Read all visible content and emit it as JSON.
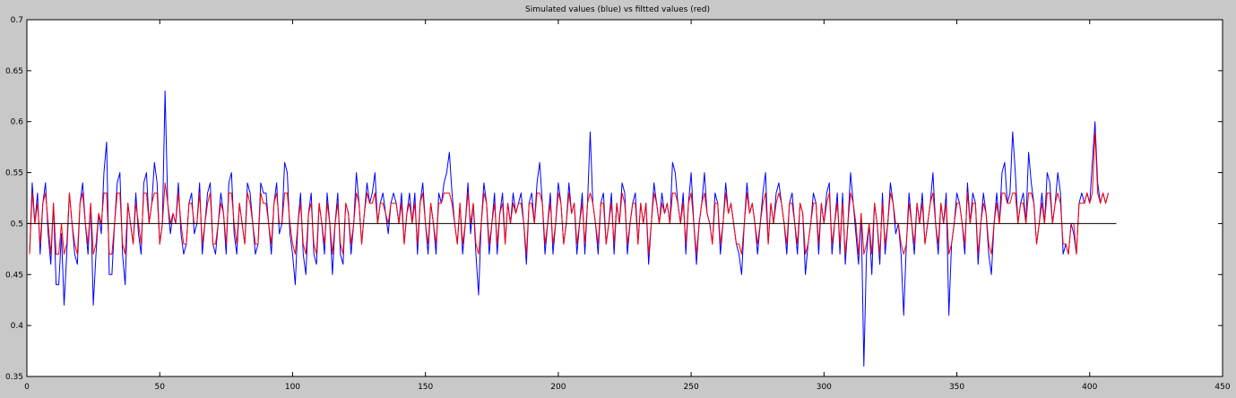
{
  "chart_data": {
    "type": "line",
    "title": "Simulated values (blue) vs filtted values (red)",
    "xlabel": "",
    "ylabel": "",
    "xlim": [
      0,
      450
    ],
    "ylim": [
      0.35,
      0.7
    ],
    "xticks": [
      0,
      50,
      100,
      150,
      200,
      250,
      300,
      350,
      400,
      450
    ],
    "yticks": [
      0.35,
      0.4,
      0.45,
      0.5,
      0.55,
      0.6,
      0.65,
      0.7
    ],
    "xtick_labels": [
      "0",
      "50",
      "100",
      "150",
      "200",
      "250",
      "300",
      "350",
      "400",
      "450"
    ],
    "ytick_labels": [
      "0.35",
      "0.4",
      "0.45",
      "0.5",
      "0.55",
      "0.6",
      "0.65",
      "0.7"
    ],
    "grid": false,
    "legend": "none",
    "reference_line": {
      "y": 0.5,
      "x": [
        0,
        410
      ],
      "color": "#000000"
    },
    "colors": {
      "blue": "#0000ff",
      "red": "#ff0000",
      "background": "#c8c8c8",
      "axes": "#ffffff"
    },
    "series": [
      {
        "color": "#0000ff",
        "x_start": 1,
        "values": [
          0.47,
          0.54,
          0.5,
          0.53,
          0.47,
          0.52,
          0.54,
          0.49,
          0.46,
          0.52,
          0.44,
          0.44,
          0.49,
          0.42,
          0.47,
          0.53,
          0.5,
          0.47,
          0.46,
          0.52,
          0.54,
          0.5,
          0.47,
          0.52,
          0.42,
          0.47,
          0.51,
          0.49,
          0.55,
          0.58,
          0.45,
          0.45,
          0.5,
          0.54,
          0.55,
          0.47,
          0.44,
          0.52,
          0.5,
          0.48,
          0.53,
          0.49,
          0.47,
          0.54,
          0.55,
          0.5,
          0.52,
          0.56,
          0.54,
          0.48,
          0.5,
          0.63,
          0.52,
          0.49,
          0.51,
          0.5,
          0.54,
          0.49,
          0.47,
          0.48,
          0.52,
          0.53,
          0.49,
          0.5,
          0.54,
          0.47,
          0.5,
          0.53,
          0.54,
          0.48,
          0.47,
          0.5,
          0.53,
          0.51,
          0.47,
          0.54,
          0.55,
          0.49,
          0.47,
          0.52,
          0.5,
          0.48,
          0.54,
          0.53,
          0.5,
          0.47,
          0.48,
          0.54,
          0.53,
          0.53,
          0.5,
          0.47,
          0.52,
          0.54,
          0.49,
          0.5,
          0.56,
          0.55,
          0.49,
          0.47,
          0.44,
          0.5,
          0.53,
          0.47,
          0.45,
          0.51,
          0.53,
          0.47,
          0.46,
          0.52,
          0.5,
          0.47,
          0.53,
          0.5,
          0.45,
          0.5,
          0.53,
          0.47,
          0.46,
          0.52,
          0.51,
          0.47,
          0.5,
          0.55,
          0.52,
          0.48,
          0.51,
          0.54,
          0.52,
          0.53,
          0.55,
          0.5,
          0.52,
          0.53,
          0.51,
          0.49,
          0.52,
          0.53,
          0.52,
          0.5,
          0.53,
          0.48,
          0.51,
          0.53,
          0.5,
          0.53,
          0.47,
          0.52,
          0.54,
          0.5,
          0.47,
          0.52,
          0.5,
          0.47,
          0.53,
          0.52,
          0.54,
          0.55,
          0.57,
          0.53,
          0.5,
          0.48,
          0.52,
          0.47,
          0.5,
          0.54,
          0.49,
          0.52,
          0.47,
          0.43,
          0.5,
          0.54,
          0.52,
          0.47,
          0.5,
          0.53,
          0.47,
          0.51,
          0.53,
          0.48,
          0.52,
          0.5,
          0.53,
          0.51,
          0.52,
          0.53,
          0.5,
          0.46,
          0.52,
          0.53,
          0.5,
          0.54,
          0.56,
          0.52,
          0.47,
          0.5,
          0.53,
          0.47,
          0.5,
          0.54,
          0.52,
          0.48,
          0.5,
          0.54,
          0.51,
          0.52,
          0.47,
          0.5,
          0.53,
          0.47,
          0.52,
          0.59,
          0.52,
          0.5,
          0.47,
          0.52,
          0.53,
          0.48,
          0.5,
          0.53,
          0.47,
          0.52,
          0.5,
          0.54,
          0.53,
          0.47,
          0.5,
          0.52,
          0.53,
          0.48,
          0.52,
          0.5,
          0.52,
          0.46,
          0.5,
          0.54,
          0.52,
          0.5,
          0.53,
          0.51,
          0.52,
          0.5,
          0.56,
          0.55,
          0.52,
          0.5,
          0.53,
          0.47,
          0.52,
          0.55,
          0.5,
          0.46,
          0.5,
          0.52,
          0.55,
          0.51,
          0.5,
          0.48,
          0.53,
          0.52,
          0.47,
          0.5,
          0.54,
          0.51,
          0.52,
          0.5,
          0.48,
          0.47,
          0.45,
          0.5,
          0.54,
          0.51,
          0.52,
          0.5,
          0.47,
          0.5,
          0.53,
          0.55,
          0.48,
          0.52,
          0.5,
          0.53,
          0.54,
          0.52,
          0.5,
          0.47,
          0.52,
          0.53,
          0.5,
          0.47,
          0.52,
          0.51,
          0.45,
          0.48,
          0.5,
          0.53,
          0.52,
          0.47,
          0.52,
          0.5,
          0.53,
          0.54,
          0.47,
          0.5,
          0.53,
          0.47,
          0.53,
          0.46,
          0.5,
          0.55,
          0.52,
          0.49,
          0.46,
          0.51,
          0.36,
          0.47,
          0.5,
          0.45,
          0.52,
          0.5,
          0.46,
          0.53,
          0.47,
          0.5,
          0.54,
          0.52,
          0.49,
          0.5,
          0.47,
          0.41,
          0.48,
          0.53,
          0.5,
          0.47,
          0.52,
          0.5,
          0.53,
          0.48,
          0.5,
          0.52,
          0.55,
          0.5,
          0.47,
          0.52,
          0.5,
          0.53,
          0.41,
          0.48,
          0.5,
          0.53,
          0.52,
          0.5,
          0.47,
          0.54,
          0.5,
          0.53,
          0.52,
          0.46,
          0.5,
          0.53,
          0.51,
          0.47,
          0.45,
          0.5,
          0.53,
          0.5,
          0.55,
          0.56,
          0.52,
          0.53,
          0.59,
          0.55,
          0.5,
          0.52,
          0.53,
          0.5,
          0.57,
          0.54,
          0.52,
          0.48,
          0.5,
          0.53,
          0.5,
          0.55,
          0.54,
          0.5,
          0.52,
          0.55,
          0.53,
          0.47,
          0.48,
          0.47,
          0.5,
          0.49,
          0.47,
          0.52,
          0.53,
          0.52,
          0.53,
          0.52,
          0.56,
          0.6,
          0.54,
          0.52,
          0.53,
          0.52,
          0.53
        ]
      },
      {
        "color": "#ff0000",
        "x_start": 1,
        "values": [
          0.47,
          0.53,
          0.5,
          0.52,
          0.48,
          0.52,
          0.53,
          0.5,
          0.47,
          0.52,
          0.47,
          0.47,
          0.5,
          0.47,
          0.48,
          0.53,
          0.5,
          0.48,
          0.47,
          0.52,
          0.53,
          0.5,
          0.48,
          0.52,
          0.47,
          0.48,
          0.51,
          0.5,
          0.53,
          0.53,
          0.47,
          0.47,
          0.5,
          0.53,
          0.53,
          0.48,
          0.47,
          0.52,
          0.5,
          0.48,
          0.52,
          0.5,
          0.48,
          0.53,
          0.53,
          0.5,
          0.52,
          0.53,
          0.53,
          0.48,
          0.5,
          0.54,
          0.52,
          0.5,
          0.51,
          0.5,
          0.53,
          0.5,
          0.48,
          0.48,
          0.52,
          0.52,
          0.5,
          0.5,
          0.53,
          0.48,
          0.5,
          0.52,
          0.53,
          0.48,
          0.48,
          0.5,
          0.52,
          0.51,
          0.48,
          0.53,
          0.53,
          0.5,
          0.48,
          0.52,
          0.5,
          0.48,
          0.53,
          0.52,
          0.5,
          0.48,
          0.48,
          0.53,
          0.52,
          0.52,
          0.5,
          0.48,
          0.52,
          0.53,
          0.5,
          0.5,
          0.53,
          0.53,
          0.5,
          0.48,
          0.47,
          0.5,
          0.52,
          0.48,
          0.47,
          0.51,
          0.52,
          0.48,
          0.47,
          0.52,
          0.5,
          0.48,
          0.52,
          0.5,
          0.47,
          0.5,
          0.52,
          0.48,
          0.47,
          0.52,
          0.51,
          0.48,
          0.5,
          0.53,
          0.52,
          0.48,
          0.51,
          0.53,
          0.52,
          0.52,
          0.53,
          0.5,
          0.52,
          0.52,
          0.51,
          0.5,
          0.52,
          0.52,
          0.52,
          0.5,
          0.52,
          0.48,
          0.51,
          0.52,
          0.5,
          0.52,
          0.48,
          0.52,
          0.53,
          0.5,
          0.48,
          0.52,
          0.5,
          0.48,
          0.52,
          0.52,
          0.53,
          0.53,
          0.53,
          0.52,
          0.5,
          0.48,
          0.52,
          0.48,
          0.5,
          0.53,
          0.5,
          0.52,
          0.48,
          0.47,
          0.5,
          0.53,
          0.52,
          0.48,
          0.5,
          0.52,
          0.48,
          0.51,
          0.52,
          0.48,
          0.52,
          0.5,
          0.52,
          0.51,
          0.52,
          0.52,
          0.5,
          0.47,
          0.52,
          0.52,
          0.5,
          0.53,
          0.53,
          0.52,
          0.48,
          0.5,
          0.52,
          0.48,
          0.5,
          0.53,
          0.52,
          0.48,
          0.5,
          0.53,
          0.51,
          0.52,
          0.48,
          0.5,
          0.52,
          0.48,
          0.52,
          0.53,
          0.52,
          0.5,
          0.48,
          0.52,
          0.52,
          0.48,
          0.5,
          0.52,
          0.48,
          0.52,
          0.5,
          0.53,
          0.52,
          0.48,
          0.5,
          0.52,
          0.52,
          0.48,
          0.52,
          0.5,
          0.52,
          0.47,
          0.5,
          0.53,
          0.52,
          0.5,
          0.52,
          0.51,
          0.52,
          0.5,
          0.53,
          0.53,
          0.52,
          0.5,
          0.52,
          0.48,
          0.52,
          0.53,
          0.5,
          0.47,
          0.5,
          0.52,
          0.53,
          0.51,
          0.5,
          0.48,
          0.52,
          0.52,
          0.48,
          0.5,
          0.53,
          0.51,
          0.52,
          0.5,
          0.48,
          0.48,
          0.47,
          0.5,
          0.53,
          0.51,
          0.52,
          0.5,
          0.48,
          0.5,
          0.52,
          0.53,
          0.48,
          0.52,
          0.5,
          0.52,
          0.53,
          0.52,
          0.5,
          0.48,
          0.52,
          0.52,
          0.5,
          0.48,
          0.52,
          0.51,
          0.47,
          0.48,
          0.5,
          0.52,
          0.52,
          0.48,
          0.52,
          0.5,
          0.52,
          0.53,
          0.48,
          0.5,
          0.52,
          0.48,
          0.52,
          0.47,
          0.5,
          0.53,
          0.52,
          0.5,
          0.47,
          0.51,
          0.47,
          0.48,
          0.5,
          0.47,
          0.52,
          0.5,
          0.47,
          0.52,
          0.48,
          0.5,
          0.53,
          0.52,
          0.5,
          0.5,
          0.48,
          0.47,
          0.48,
          0.52,
          0.5,
          0.48,
          0.52,
          0.5,
          0.52,
          0.48,
          0.5,
          0.52,
          0.53,
          0.5,
          0.48,
          0.52,
          0.5,
          0.52,
          0.47,
          0.48,
          0.5,
          0.52,
          0.52,
          0.5,
          0.48,
          0.53,
          0.5,
          0.52,
          0.52,
          0.47,
          0.5,
          0.52,
          0.51,
          0.48,
          0.47,
          0.5,
          0.52,
          0.5,
          0.53,
          0.53,
          0.52,
          0.52,
          0.53,
          0.53,
          0.5,
          0.52,
          0.52,
          0.5,
          0.53,
          0.53,
          0.52,
          0.48,
          0.5,
          0.52,
          0.5,
          0.53,
          0.53,
          0.5,
          0.52,
          0.53,
          0.52,
          0.48,
          0.48,
          0.47,
          0.5,
          0.5,
          0.47,
          0.52,
          0.52,
          0.52,
          0.53,
          0.52,
          0.53,
          0.59,
          0.53,
          0.52,
          0.53,
          0.52,
          0.53
        ]
      }
    ]
  }
}
